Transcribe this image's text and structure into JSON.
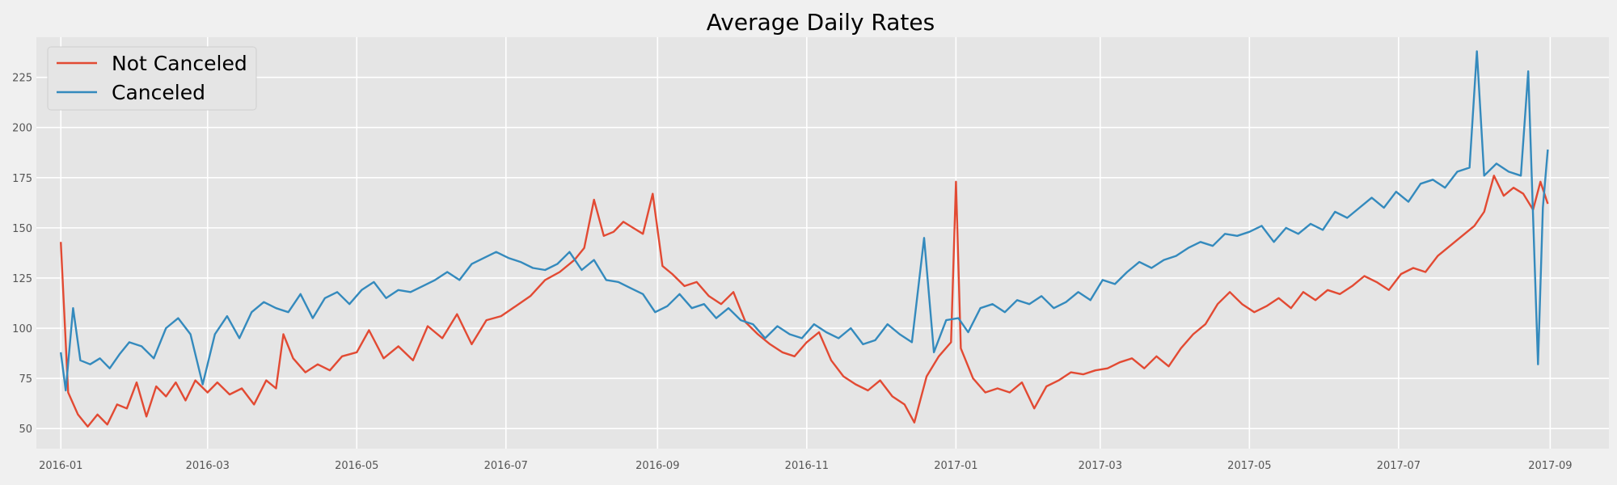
{
  "chart_data": {
    "type": "line",
    "title": "Average Daily Rates",
    "xlabel": "",
    "ylabel": "",
    "x_range": [
      "2015-12-22",
      "2017-09-25"
    ],
    "ylim": [
      40,
      245
    ],
    "x_ticks": [
      "2016-01",
      "2016-03",
      "2016-05",
      "2016-07",
      "2016-09",
      "2016-11",
      "2017-01",
      "2017-03",
      "2017-05",
      "2017-07",
      "2017-09"
    ],
    "y_ticks": [
      50,
      75,
      100,
      125,
      150,
      175,
      200,
      225
    ],
    "grid": true,
    "legend_position": "top-left",
    "series": [
      {
        "name": "Not Canceled",
        "color": "#e24a33",
        "points": [
          [
            "2016-01-01",
            143
          ],
          [
            "2016-01-04",
            68
          ],
          [
            "2016-01-08",
            57
          ],
          [
            "2016-01-12",
            51
          ],
          [
            "2016-01-16",
            57
          ],
          [
            "2016-01-20",
            52
          ],
          [
            "2016-01-24",
            62
          ],
          [
            "2016-01-28",
            60
          ],
          [
            "2016-02-01",
            73
          ],
          [
            "2016-02-05",
            56
          ],
          [
            "2016-02-09",
            71
          ],
          [
            "2016-02-13",
            66
          ],
          [
            "2016-02-17",
            73
          ],
          [
            "2016-02-21",
            64
          ],
          [
            "2016-02-25",
            74
          ],
          [
            "2016-03-01",
            68
          ],
          [
            "2016-03-05",
            73
          ],
          [
            "2016-03-10",
            67
          ],
          [
            "2016-03-15",
            70
          ],
          [
            "2016-03-20",
            62
          ],
          [
            "2016-03-25",
            74
          ],
          [
            "2016-03-29",
            70
          ],
          [
            "2016-04-01",
            97
          ],
          [
            "2016-04-05",
            85
          ],
          [
            "2016-04-10",
            78
          ],
          [
            "2016-04-15",
            82
          ],
          [
            "2016-04-20",
            79
          ],
          [
            "2016-04-25",
            86
          ],
          [
            "2016-05-01",
            88
          ],
          [
            "2016-05-06",
            99
          ],
          [
            "2016-05-12",
            85
          ],
          [
            "2016-05-18",
            91
          ],
          [
            "2016-05-24",
            84
          ],
          [
            "2016-05-30",
            101
          ],
          [
            "2016-06-05",
            95
          ],
          [
            "2016-06-11",
            107
          ],
          [
            "2016-06-17",
            92
          ],
          [
            "2016-06-23",
            104
          ],
          [
            "2016-06-29",
            106
          ],
          [
            "2016-07-05",
            111
          ],
          [
            "2016-07-11",
            116
          ],
          [
            "2016-07-17",
            124
          ],
          [
            "2016-07-23",
            128
          ],
          [
            "2016-07-29",
            134
          ],
          [
            "2016-08-02",
            140
          ],
          [
            "2016-08-06",
            164
          ],
          [
            "2016-08-10",
            146
          ],
          [
            "2016-08-14",
            148
          ],
          [
            "2016-08-18",
            153
          ],
          [
            "2016-08-22",
            150
          ],
          [
            "2016-08-26",
            147
          ],
          [
            "2016-08-30",
            167
          ],
          [
            "2016-09-03",
            131
          ],
          [
            "2016-09-07",
            127
          ],
          [
            "2016-09-12",
            121
          ],
          [
            "2016-09-17",
            123
          ],
          [
            "2016-09-22",
            116
          ],
          [
            "2016-09-27",
            112
          ],
          [
            "2016-10-02",
            118
          ],
          [
            "2016-10-07",
            103
          ],
          [
            "2016-10-12",
            97
          ],
          [
            "2016-10-17",
            92
          ],
          [
            "2016-10-22",
            88
          ],
          [
            "2016-10-27",
            86
          ],
          [
            "2016-11-01",
            93
          ],
          [
            "2016-11-06",
            98
          ],
          [
            "2016-11-11",
            84
          ],
          [
            "2016-11-16",
            76
          ],
          [
            "2016-11-21",
            72
          ],
          [
            "2016-11-26",
            69
          ],
          [
            "2016-12-01",
            74
          ],
          [
            "2016-12-06",
            66
          ],
          [
            "2016-12-11",
            62
          ],
          [
            "2016-12-15",
            53
          ],
          [
            "2016-12-20",
            76
          ],
          [
            "2016-12-25",
            86
          ],
          [
            "2016-12-30",
            93
          ],
          [
            "2017-01-01",
            173
          ],
          [
            "2017-01-03",
            90
          ],
          [
            "2017-01-08",
            75
          ],
          [
            "2017-01-13",
            68
          ],
          [
            "2017-01-18",
            70
          ],
          [
            "2017-01-23",
            68
          ],
          [
            "2017-01-28",
            73
          ],
          [
            "2017-02-02",
            60
          ],
          [
            "2017-02-07",
            71
          ],
          [
            "2017-02-12",
            74
          ],
          [
            "2017-02-17",
            78
          ],
          [
            "2017-02-22",
            77
          ],
          [
            "2017-02-27",
            79
          ],
          [
            "2017-03-04",
            80
          ],
          [
            "2017-03-09",
            83
          ],
          [
            "2017-03-14",
            85
          ],
          [
            "2017-03-19",
            80
          ],
          [
            "2017-03-24",
            86
          ],
          [
            "2017-03-29",
            81
          ],
          [
            "2017-04-03",
            90
          ],
          [
            "2017-04-08",
            97
          ],
          [
            "2017-04-13",
            102
          ],
          [
            "2017-04-18",
            112
          ],
          [
            "2017-04-23",
            118
          ],
          [
            "2017-04-28",
            112
          ],
          [
            "2017-05-03",
            108
          ],
          [
            "2017-05-08",
            111
          ],
          [
            "2017-05-13",
            115
          ],
          [
            "2017-05-18",
            110
          ],
          [
            "2017-05-23",
            118
          ],
          [
            "2017-05-28",
            114
          ],
          [
            "2017-06-02",
            119
          ],
          [
            "2017-06-07",
            117
          ],
          [
            "2017-06-12",
            121
          ],
          [
            "2017-06-17",
            126
          ],
          [
            "2017-06-22",
            123
          ],
          [
            "2017-06-27",
            119
          ],
          [
            "2017-07-02",
            127
          ],
          [
            "2017-07-07",
            130
          ],
          [
            "2017-07-12",
            128
          ],
          [
            "2017-07-17",
            136
          ],
          [
            "2017-07-22",
            141
          ],
          [
            "2017-07-27",
            146
          ],
          [
            "2017-08-01",
            151
          ],
          [
            "2017-08-05",
            158
          ],
          [
            "2017-08-09",
            176
          ],
          [
            "2017-08-13",
            166
          ],
          [
            "2017-08-17",
            170
          ],
          [
            "2017-08-21",
            167
          ],
          [
            "2017-08-25",
            159
          ],
          [
            "2017-08-28",
            173
          ],
          [
            "2017-08-31",
            162
          ]
        ]
      },
      {
        "name": "Canceled",
        "color": "#348abd",
        "points": [
          [
            "2016-01-01",
            88
          ],
          [
            "2016-01-03",
            69
          ],
          [
            "2016-01-06",
            110
          ],
          [
            "2016-01-09",
            84
          ],
          [
            "2016-01-13",
            82
          ],
          [
            "2016-01-17",
            85
          ],
          [
            "2016-01-21",
            80
          ],
          [
            "2016-01-25",
            87
          ],
          [
            "2016-01-29",
            93
          ],
          [
            "2016-02-03",
            91
          ],
          [
            "2016-02-08",
            85
          ],
          [
            "2016-02-13",
            100
          ],
          [
            "2016-02-18",
            105
          ],
          [
            "2016-02-23",
            97
          ],
          [
            "2016-02-28",
            72
          ],
          [
            "2016-03-04",
            97
          ],
          [
            "2016-03-09",
            106
          ],
          [
            "2016-03-14",
            95
          ],
          [
            "2016-03-19",
            108
          ],
          [
            "2016-03-24",
            113
          ],
          [
            "2016-03-29",
            110
          ],
          [
            "2016-04-03",
            108
          ],
          [
            "2016-04-08",
            117
          ],
          [
            "2016-04-13",
            105
          ],
          [
            "2016-04-18",
            115
          ],
          [
            "2016-04-23",
            118
          ],
          [
            "2016-04-28",
            112
          ],
          [
            "2016-05-03",
            119
          ],
          [
            "2016-05-08",
            123
          ],
          [
            "2016-05-13",
            115
          ],
          [
            "2016-05-18",
            119
          ],
          [
            "2016-05-23",
            118
          ],
          [
            "2016-05-28",
            121
          ],
          [
            "2016-06-02",
            124
          ],
          [
            "2016-06-07",
            128
          ],
          [
            "2016-06-12",
            124
          ],
          [
            "2016-06-17",
            132
          ],
          [
            "2016-06-22",
            135
          ],
          [
            "2016-06-27",
            138
          ],
          [
            "2016-07-02",
            135
          ],
          [
            "2016-07-07",
            133
          ],
          [
            "2016-07-12",
            130
          ],
          [
            "2016-07-17",
            129
          ],
          [
            "2016-07-22",
            132
          ],
          [
            "2016-07-27",
            138
          ],
          [
            "2016-08-01",
            129
          ],
          [
            "2016-08-06",
            134
          ],
          [
            "2016-08-11",
            124
          ],
          [
            "2016-08-16",
            123
          ],
          [
            "2016-08-21",
            120
          ],
          [
            "2016-08-26",
            117
          ],
          [
            "2016-08-31",
            108
          ],
          [
            "2016-09-05",
            111
          ],
          [
            "2016-09-10",
            117
          ],
          [
            "2016-09-15",
            110
          ],
          [
            "2016-09-20",
            112
          ],
          [
            "2016-09-25",
            105
          ],
          [
            "2016-09-30",
            110
          ],
          [
            "2016-10-05",
            104
          ],
          [
            "2016-10-10",
            102
          ],
          [
            "2016-10-15",
            95
          ],
          [
            "2016-10-20",
            101
          ],
          [
            "2016-10-25",
            97
          ],
          [
            "2016-10-30",
            95
          ],
          [
            "2016-11-04",
            102
          ],
          [
            "2016-11-09",
            98
          ],
          [
            "2016-11-14",
            95
          ],
          [
            "2016-11-19",
            100
          ],
          [
            "2016-11-24",
            92
          ],
          [
            "2016-11-29",
            94
          ],
          [
            "2016-12-04",
            102
          ],
          [
            "2016-12-09",
            97
          ],
          [
            "2016-12-14",
            93
          ],
          [
            "2016-12-19",
            145
          ],
          [
            "2016-12-23",
            88
          ],
          [
            "2016-12-28",
            104
          ],
          [
            "2017-01-02",
            105
          ],
          [
            "2017-01-06",
            98
          ],
          [
            "2017-01-11",
            110
          ],
          [
            "2017-01-16",
            112
          ],
          [
            "2017-01-21",
            108
          ],
          [
            "2017-01-26",
            114
          ],
          [
            "2017-01-31",
            112
          ],
          [
            "2017-02-05",
            116
          ],
          [
            "2017-02-10",
            110
          ],
          [
            "2017-02-15",
            113
          ],
          [
            "2017-02-20",
            118
          ],
          [
            "2017-02-25",
            114
          ],
          [
            "2017-03-02",
            124
          ],
          [
            "2017-03-07",
            122
          ],
          [
            "2017-03-12",
            128
          ],
          [
            "2017-03-17",
            133
          ],
          [
            "2017-03-22",
            130
          ],
          [
            "2017-03-27",
            134
          ],
          [
            "2017-04-01",
            136
          ],
          [
            "2017-04-06",
            140
          ],
          [
            "2017-04-11",
            143
          ],
          [
            "2017-04-16",
            141
          ],
          [
            "2017-04-21",
            147
          ],
          [
            "2017-04-26",
            146
          ],
          [
            "2017-05-01",
            148
          ],
          [
            "2017-05-06",
            151
          ],
          [
            "2017-05-11",
            143
          ],
          [
            "2017-05-16",
            150
          ],
          [
            "2017-05-21",
            147
          ],
          [
            "2017-05-26",
            152
          ],
          [
            "2017-05-31",
            149
          ],
          [
            "2017-06-05",
            158
          ],
          [
            "2017-06-10",
            155
          ],
          [
            "2017-06-15",
            160
          ],
          [
            "2017-06-20",
            165
          ],
          [
            "2017-06-25",
            160
          ],
          [
            "2017-06-30",
            168
          ],
          [
            "2017-07-05",
            163
          ],
          [
            "2017-07-10",
            172
          ],
          [
            "2017-07-15",
            174
          ],
          [
            "2017-07-20",
            170
          ],
          [
            "2017-07-25",
            178
          ],
          [
            "2017-07-30",
            180
          ],
          [
            "2017-08-02",
            238
          ],
          [
            "2017-08-05",
            176
          ],
          [
            "2017-08-10",
            182
          ],
          [
            "2017-08-15",
            178
          ],
          [
            "2017-08-20",
            176
          ],
          [
            "2017-08-23",
            228
          ],
          [
            "2017-08-27",
            82
          ],
          [
            "2017-08-29",
            160
          ],
          [
            "2017-08-31",
            189
          ]
        ]
      }
    ]
  }
}
